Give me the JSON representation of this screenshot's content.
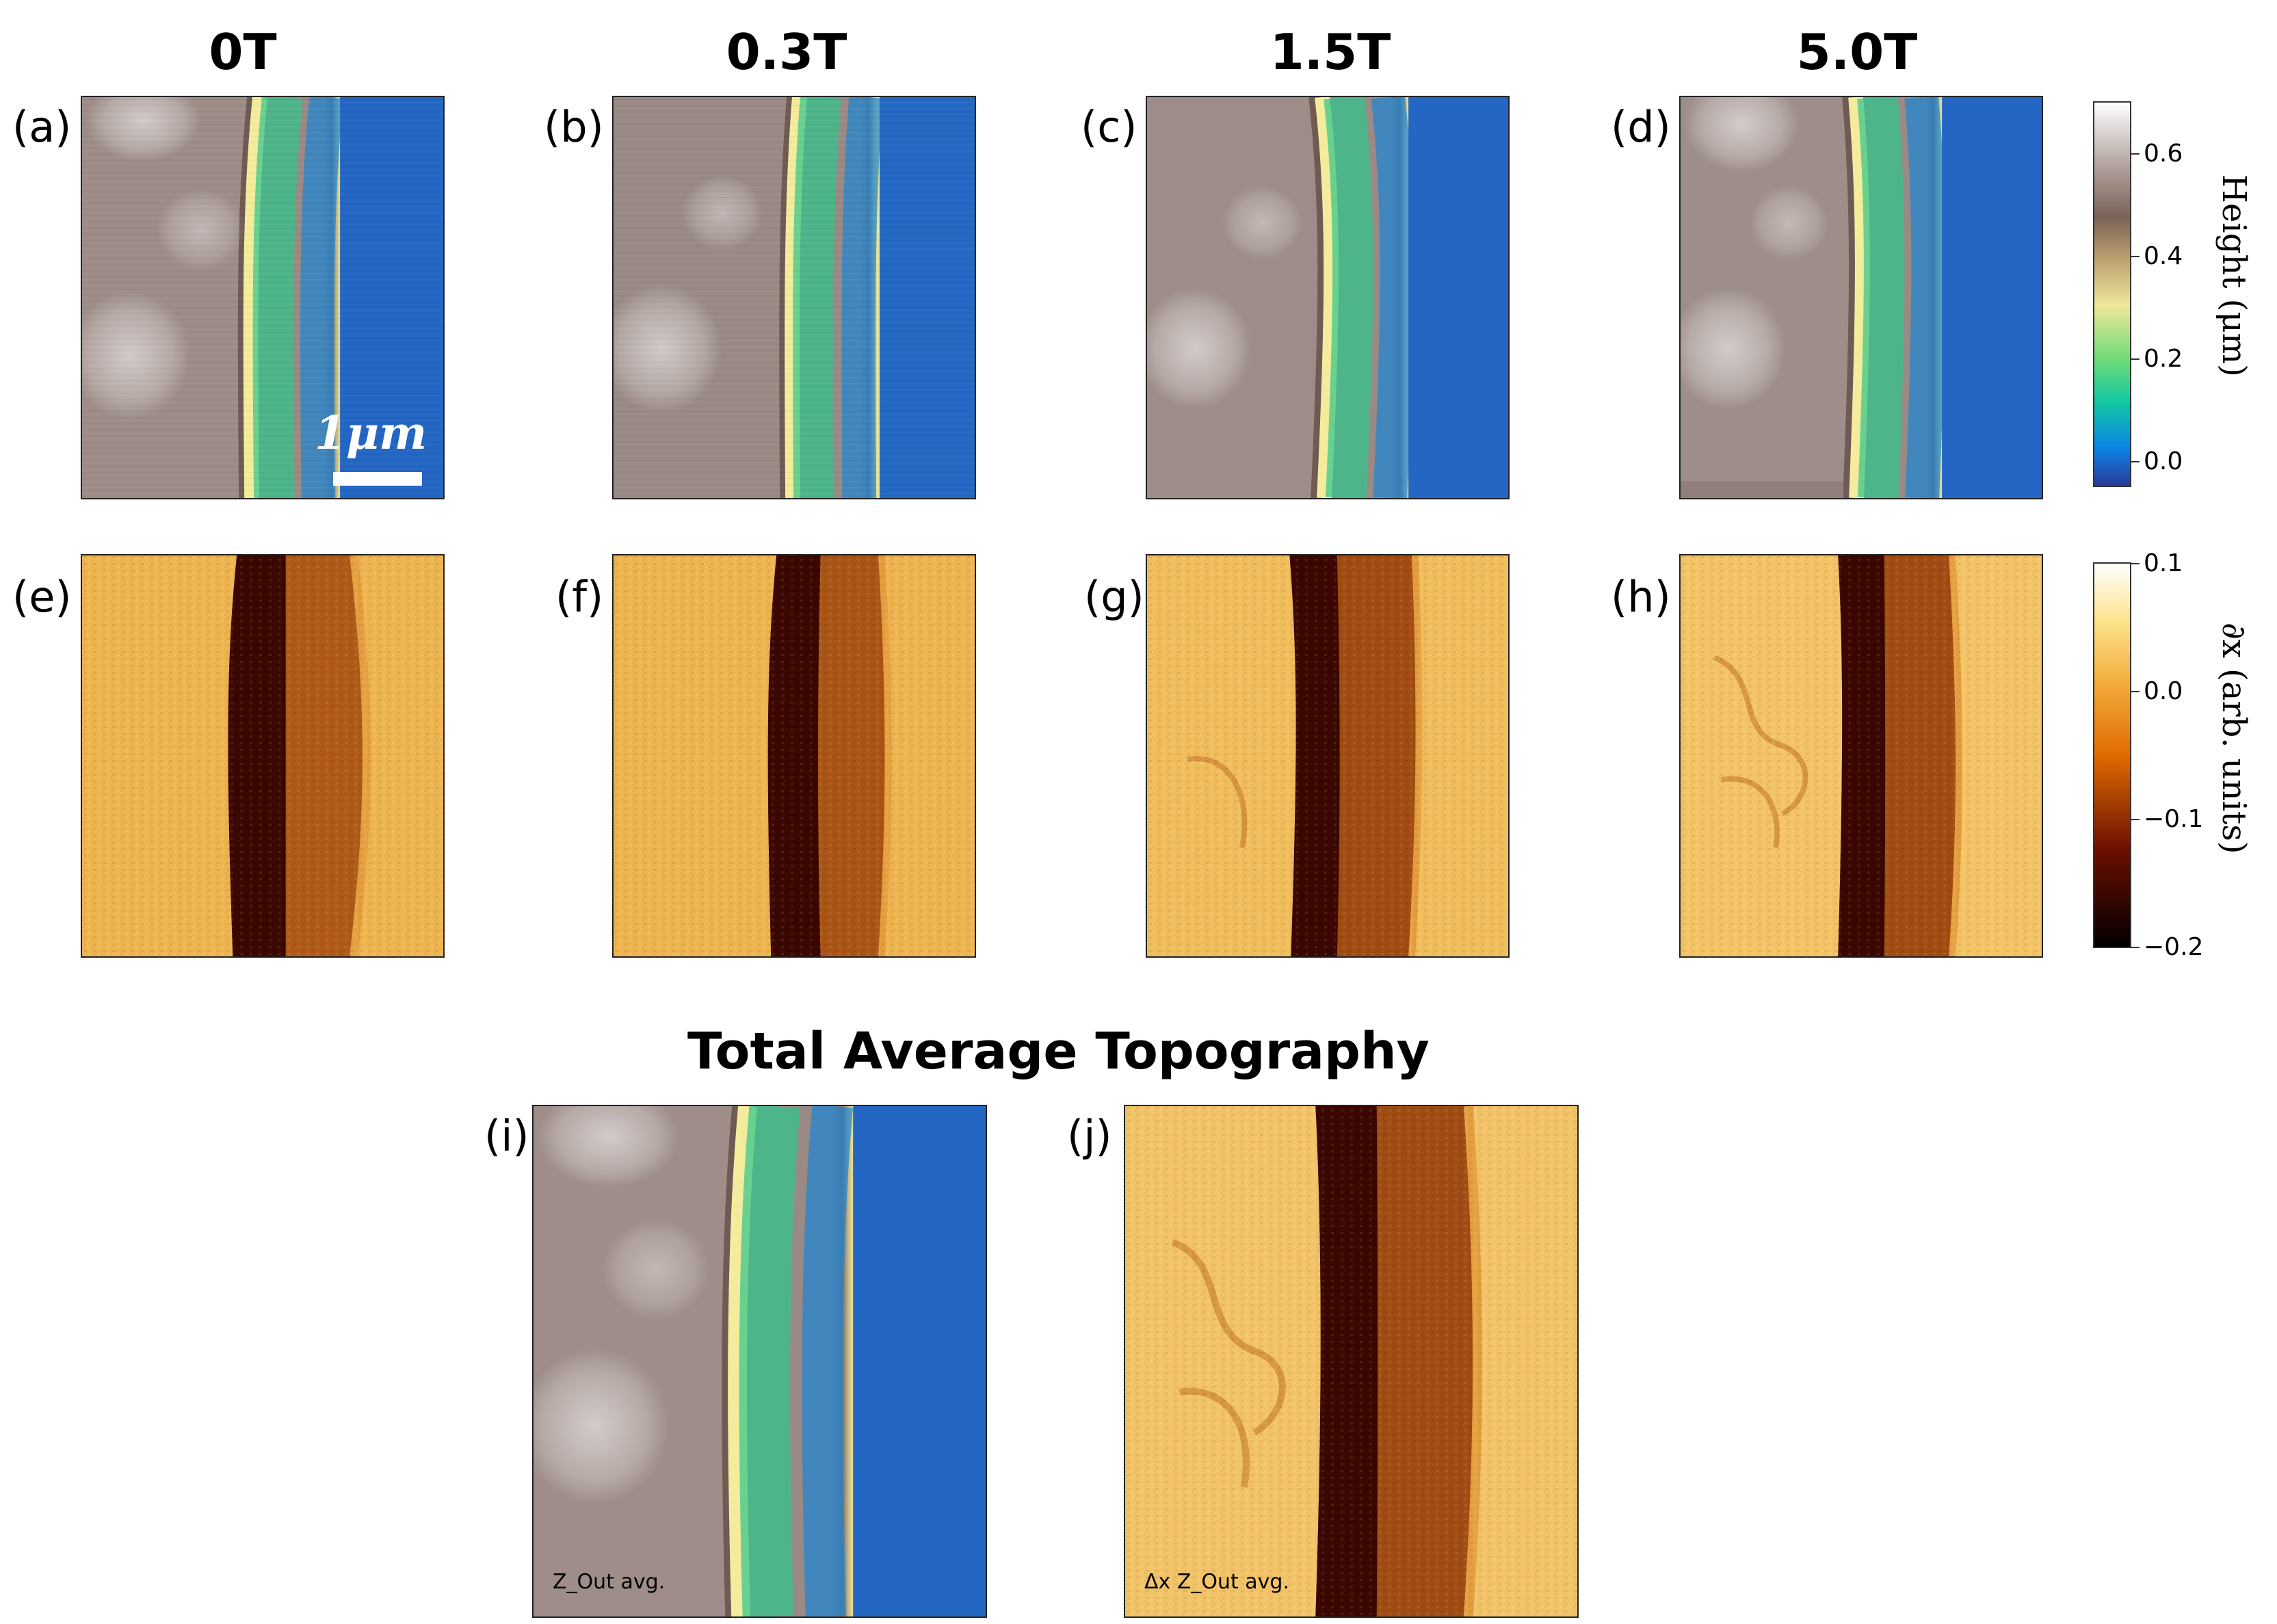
{
  "columns": [
    "0T",
    "0.3T",
    "1.5T",
    "5.0T"
  ],
  "panel_labels": {
    "top": [
      "(a)",
      "(b)",
      "(c)",
      "(d)"
    ],
    "mid": [
      "(e)",
      "(f)",
      "(g)",
      "(h)"
    ],
    "bottom": [
      "(i)",
      "(j)"
    ]
  },
  "scale_bar": "1μm",
  "bottom_title": "Total Average Topography",
  "colorbar_height": {
    "label": "Height (μm)",
    "ticks": [
      "0.6",
      "0.4",
      "0.2",
      "0.0"
    ],
    "tick_values": [
      0.6,
      0.4,
      0.2,
      0.0
    ],
    "range": [
      -0.05,
      0.7
    ],
    "colormap": "terrain"
  },
  "colorbar_deriv": {
    "label": "∂x (arb. units)",
    "ticks": [
      "0.1",
      "0.0",
      "−0.1",
      "−0.2"
    ],
    "tick_values": [
      0.1,
      0.0,
      -0.1,
      -0.2
    ],
    "range": [
      -0.2,
      0.1
    ],
    "colormap": "afmhot"
  },
  "inner_notes": {
    "i": "Z_Out avg.",
    "j": "Δx Z_Out avg."
  }
}
